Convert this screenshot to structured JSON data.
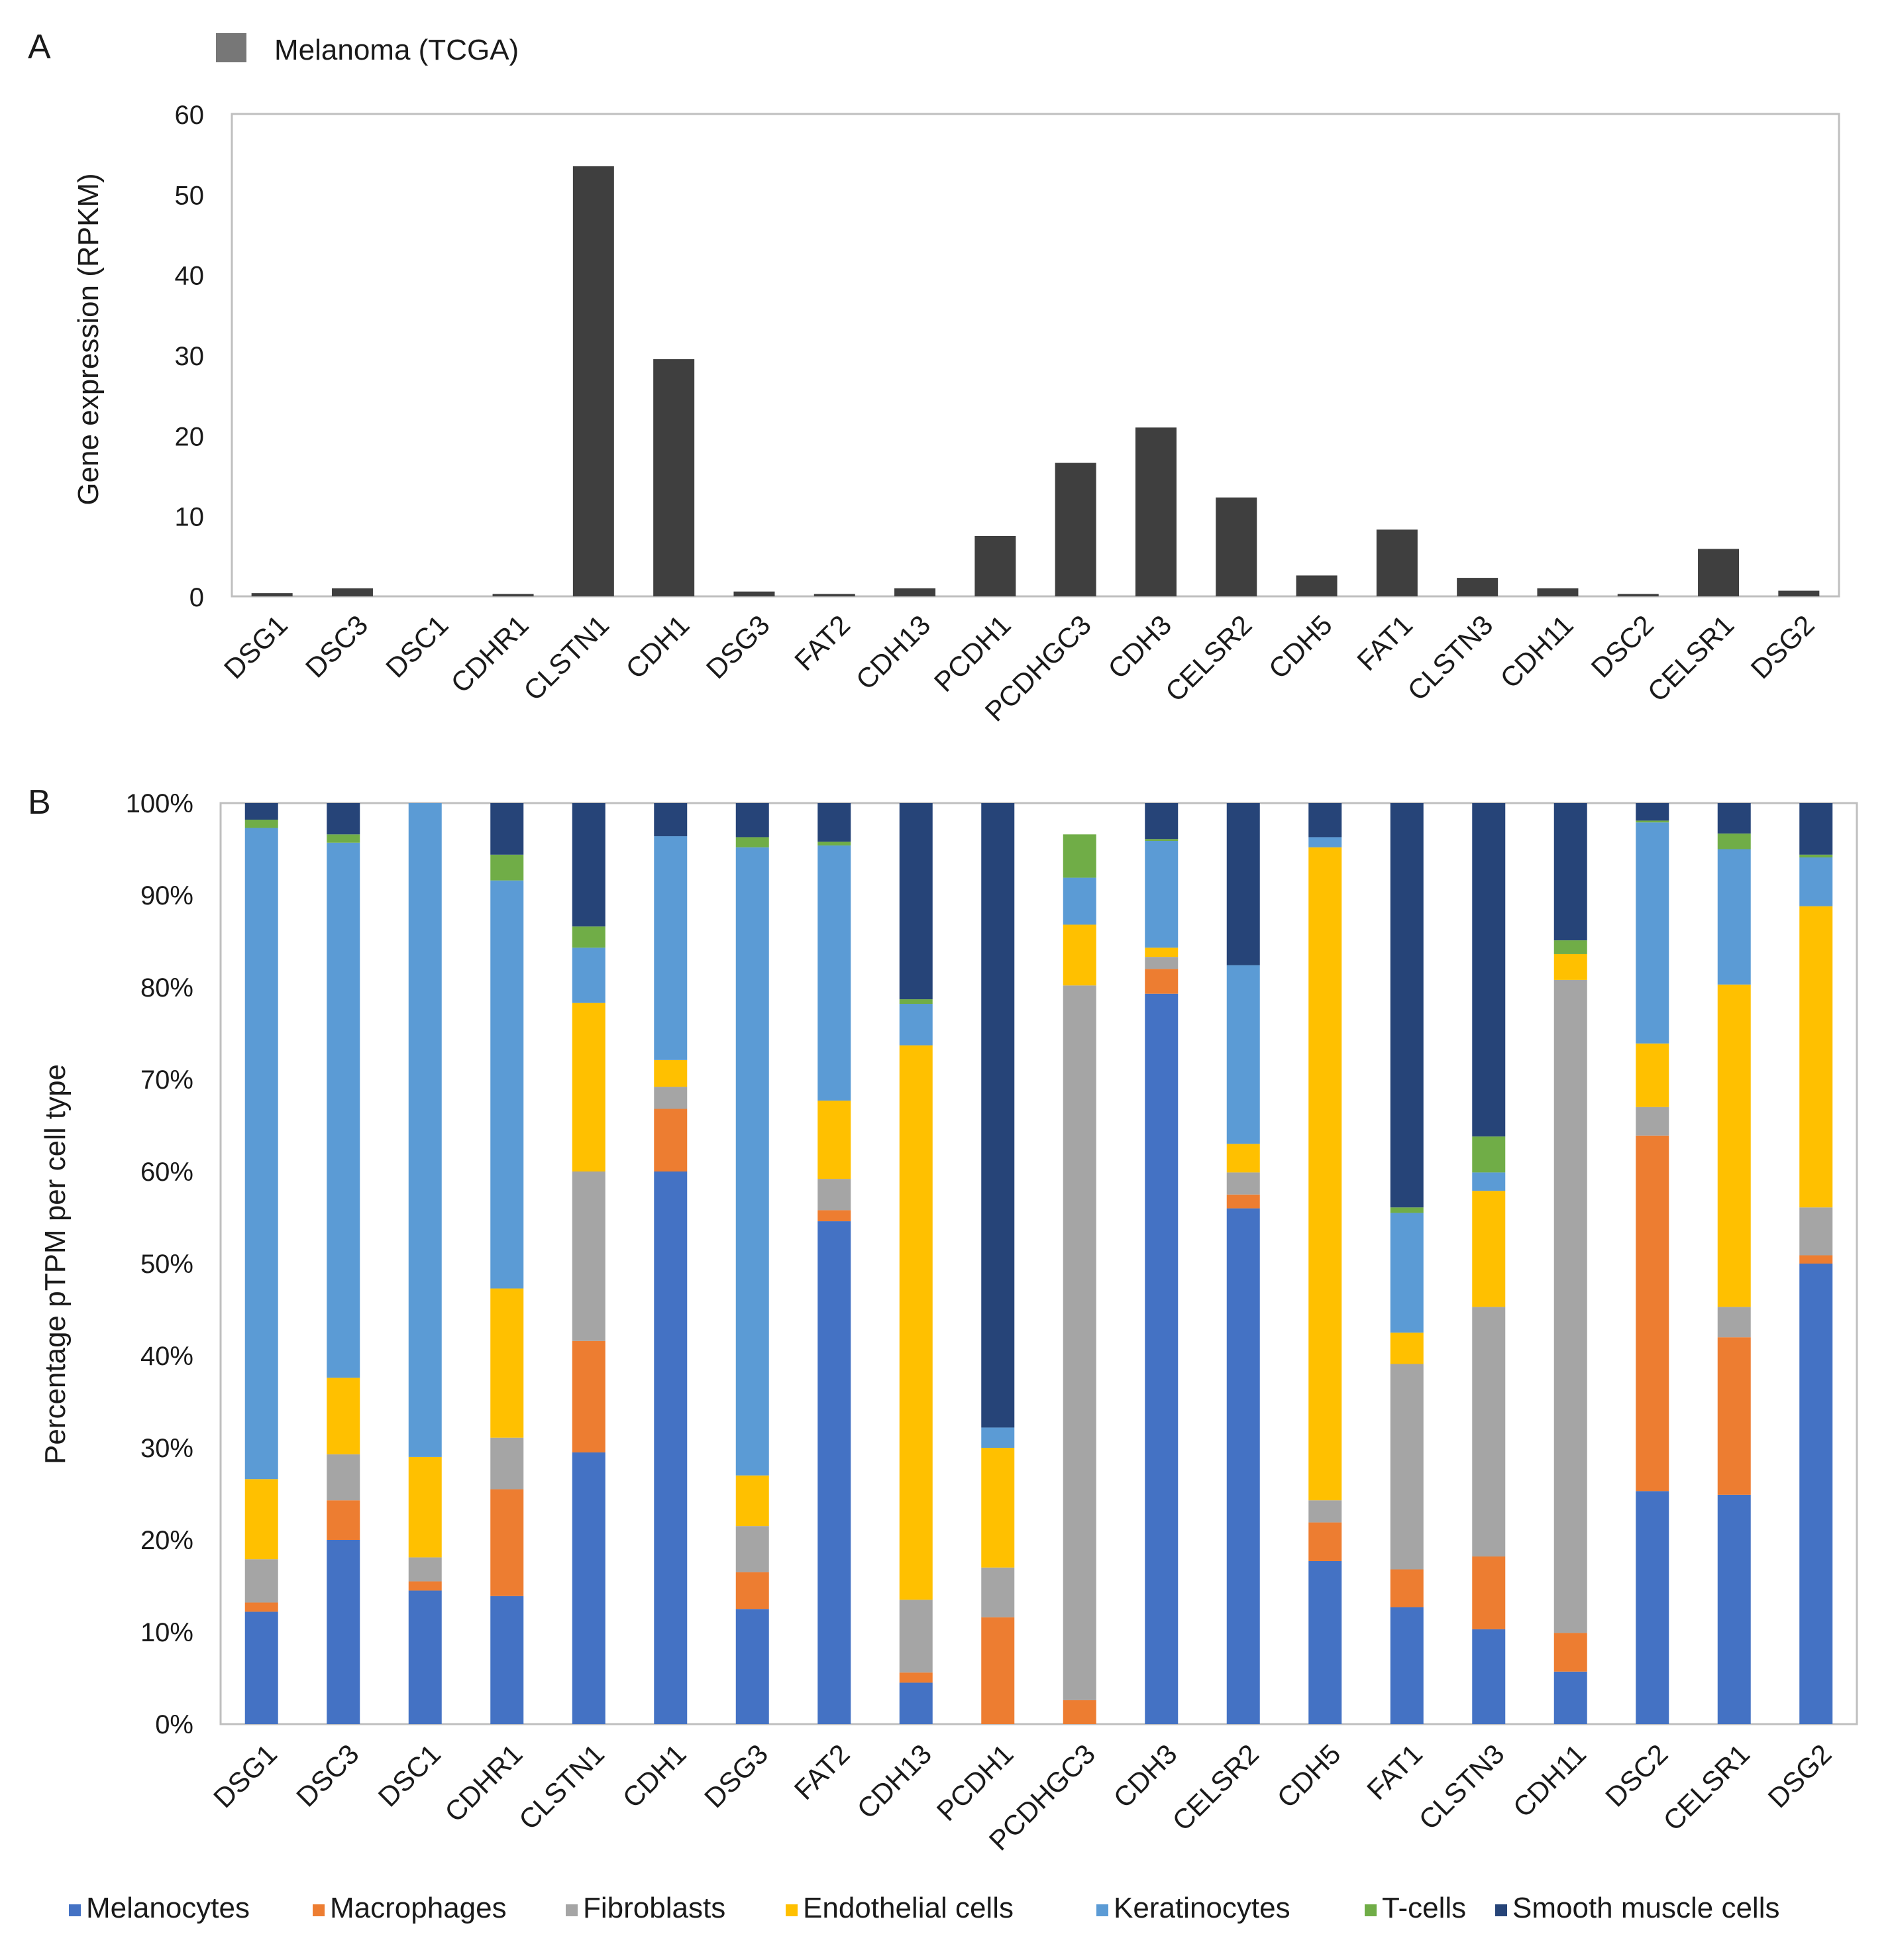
{
  "panel_a": {
    "letter": "A",
    "legend_label": "Melanoma (TCGA)",
    "ylabel": "Gene expression (RPKM)",
    "yticks": [
      "0",
      "10",
      "20",
      "30",
      "40",
      "50",
      "60"
    ]
  },
  "panel_b": {
    "letter": "B",
    "ylabel": "Percentage pTPM per cell type",
    "yticks": [
      "0%",
      "10%",
      "20%",
      "30%",
      "40%",
      "50%",
      "60%",
      "70%",
      "80%",
      "90%",
      "100%"
    ]
  },
  "colors": {
    "panel_a_bar": "#3f3f3f",
    "legend_a_swatch": "#777777",
    "frame": "#bfbfbf",
    "Melanocytes": "#4472c4",
    "Macrophages": "#ed7d31",
    "Fibroblasts": "#a5a5a5",
    "Endothelial cells": "#ffc000",
    "Keratinocytes": "#5b9bd5",
    "T-cells": "#70ad47",
    "Smooth muscle cells": "#264478"
  },
  "chart_data": [
    {
      "type": "bar",
      "title": "Melanoma (TCGA)",
      "ylabel": "Gene expression (RPKM)",
      "ylim": [
        0,
        60
      ],
      "categories": [
        "DSG1",
        "DSC3",
        "DSC1",
        "CDHR1",
        "CLSTN1",
        "CDH1",
        "DSG3",
        "FAT2",
        "CDH13",
        "PCDH1",
        "PCDHGC3",
        "CDH3",
        "CELSR2",
        "CDH5",
        "FAT1",
        "CLSTN3",
        "CDH11",
        "DSC2",
        "CELSR1",
        "DSG2"
      ],
      "values": [
        0.4,
        1.0,
        0.0,
        0.3,
        53.5,
        29.5,
        0.6,
        0.3,
        1.0,
        7.5,
        16.6,
        21.0,
        12.3,
        2.6,
        8.3,
        2.3,
        1.0,
        0.3,
        5.9,
        0.7
      ]
    },
    {
      "type": "bar",
      "stacked": true,
      "ylabel": "Percentage pTPM per cell type",
      "ylim": [
        0,
        100
      ],
      "categories": [
        "DSG1",
        "DSC3",
        "DSC1",
        "CDHR1",
        "CLSTN1",
        "CDH1",
        "DSG3",
        "FAT2",
        "CDH13",
        "PCDH1",
        "PCDHGC3",
        "CDH3",
        "CELSR2",
        "CDH5",
        "FAT1",
        "CLSTN3",
        "CDH11",
        "DSC2",
        "CELSR1",
        "DSG2"
      ],
      "series": [
        {
          "name": "Melanocytes",
          "values": [
            12.2,
            20.0,
            14.5,
            13.9,
            29.5,
            60.0,
            12.5,
            54.6,
            4.5,
            0.0,
            0.0,
            79.3,
            56.0,
            17.7,
            12.7,
            10.3,
            5.7,
            25.3,
            24.9,
            50.0
          ]
        },
        {
          "name": "Macrophages",
          "values": [
            1.0,
            4.3,
            1.0,
            11.6,
            12.1,
            6.8,
            4.0,
            1.2,
            1.1,
            11.6,
            2.6,
            2.7,
            1.5,
            4.2,
            4.1,
            7.9,
            4.2,
            38.6,
            17.1,
            0.9
          ]
        },
        {
          "name": "Fibroblasts",
          "values": [
            4.7,
            5.0,
            2.6,
            5.6,
            18.4,
            2.4,
            5.0,
            3.4,
            7.9,
            5.4,
            77.6,
            1.3,
            2.4,
            2.4,
            22.3,
            27.1,
            70.9,
            3.1,
            3.3,
            5.2
          ]
        },
        {
          "name": "Endothelial cells",
          "values": [
            8.7,
            8.3,
            10.9,
            16.2,
            18.3,
            2.9,
            5.5,
            8.5,
            60.2,
            13.0,
            6.6,
            1.0,
            3.1,
            70.9,
            3.4,
            12.6,
            2.8,
            6.9,
            35.0,
            32.7
          ]
        },
        {
          "name": "Keratinocytes",
          "values": [
            70.7,
            58.1,
            71.0,
            44.3,
            6.0,
            24.3,
            68.2,
            27.7,
            4.5,
            2.2,
            5.1,
            11.6,
            19.4,
            1.1,
            13.0,
            2.0,
            0.0,
            24.0,
            14.7,
            5.3
          ]
        },
        {
          "name": "T-cells",
          "values": [
            0.9,
            0.9,
            0.0,
            2.8,
            2.3,
            0.0,
            1.1,
            0.4,
            0.5,
            0.0,
            4.7,
            0.2,
            0.0,
            0.0,
            0.6,
            3.9,
            1.5,
            0.2,
            1.7,
            0.3
          ]
        },
        {
          "name": "Smooth muscle cells",
          "values": [
            1.8,
            3.4,
            0.0,
            5.6,
            13.4,
            3.6,
            3.7,
            4.2,
            21.3,
            67.8,
            0.0,
            3.9,
            17.6,
            3.7,
            43.9,
            36.2,
            14.9,
            1.9,
            3.3,
            5.6
          ]
        }
      ]
    }
  ]
}
